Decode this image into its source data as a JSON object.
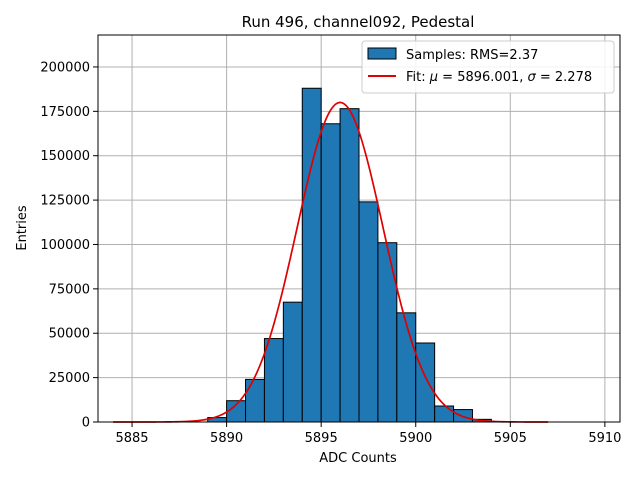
{
  "chart_data": {
    "type": "bar",
    "title": "Run 496, channel092, Pedestal",
    "xlabel": "ADC Counts",
    "ylabel": "Entries",
    "xlim": [
      5883.2,
      5910.8
    ],
    "ylim": [
      0,
      218000
    ],
    "xticks": [
      5885,
      5890,
      5895,
      5900,
      5905,
      5910
    ],
    "yticks": [
      0,
      25000,
      50000,
      75000,
      100000,
      125000,
      150000,
      175000,
      200000
    ],
    "grid": true,
    "legend_position": "top-right",
    "histogram": {
      "name": "Samples: RMS=2.37",
      "color": "#1f77b4",
      "edgecolor": "#000000",
      "bin_edges": [
        5889,
        5890,
        5891,
        5892,
        5893,
        5894,
        5895,
        5896,
        5897,
        5898,
        5899,
        5900,
        5901,
        5902,
        5903,
        5904,
        5905,
        5906,
        5907
      ],
      "values": [
        2500,
        12000,
        24000,
        47000,
        67500,
        188000,
        168000,
        176500,
        124000,
        101000,
        61500,
        44500,
        9000,
        7000,
        1500,
        0,
        0,
        0
      ]
    },
    "fit": {
      "name": "Fit: μ = 5896.001, σ = 2.278",
      "name_parts": [
        "Fit: ",
        "μ",
        " = 5896.001, ",
        "σ",
        " = 2.278"
      ],
      "color": "#e00000",
      "mu": 5896.001,
      "sigma": 2.278,
      "amplitude": 180000,
      "x_range": [
        5884,
        5907
      ]
    }
  }
}
